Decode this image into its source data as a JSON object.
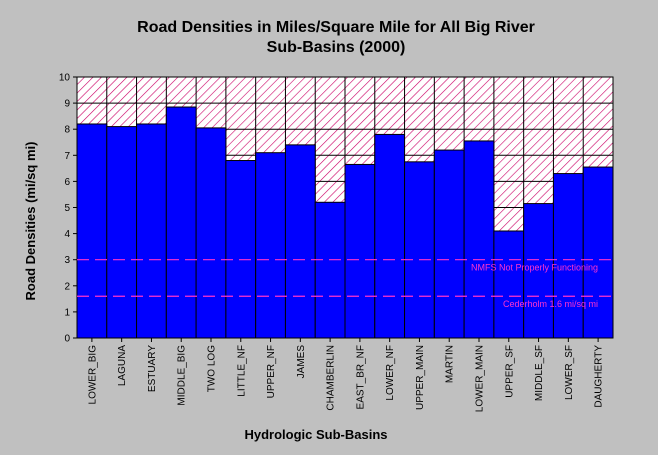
{
  "chart_data": {
    "type": "bar",
    "title_lines": [
      "Road Densities in Miles/Square Mile for All Big River",
      "Sub-Basins (2000)"
    ],
    "xlabel": "Hydrologic Sub-Basins",
    "ylabel": "Road Densities (mi/sq mi)",
    "ylim": [
      0,
      10
    ],
    "yticks": [
      "0",
      "1",
      "2",
      "3",
      "4",
      "5",
      "6",
      "7",
      "8",
      "9",
      "10"
    ],
    "categories": [
      "LOWER_BIG",
      "LAGUNA",
      "ESTUARY",
      "MIDDLE_BIG",
      "TWO LOG",
      "LITTLE_NF",
      "UPPER_NF",
      "JAMES",
      "CHAMBERLIN",
      "EAST_BR_NF",
      "LOWER_NF",
      "UPPER_MAIN",
      "MARTIN",
      "LOWER_MAIN",
      "UPPER_SF",
      "MIDDLE_SF",
      "LOWER_SF",
      "DAUGHERTY"
    ],
    "values": [
      8.2,
      8.1,
      8.2,
      8.85,
      8.05,
      6.8,
      7.1,
      7.4,
      5.2,
      6.65,
      7.8,
      6.75,
      7.2,
      7.55,
      4.1,
      5.15,
      6.3,
      6.55
    ],
    "reference_lines": [
      {
        "value": 3.0,
        "label": "NMFS Not Properly Functioning"
      },
      {
        "value": 1.6,
        "label": "Cederholm 1.6 mi/sq mi"
      }
    ],
    "colors": {
      "bar": "#0000ff",
      "hatch": "#cc0066",
      "reference": "#ff33cc",
      "background": "#c0c0c0"
    }
  }
}
